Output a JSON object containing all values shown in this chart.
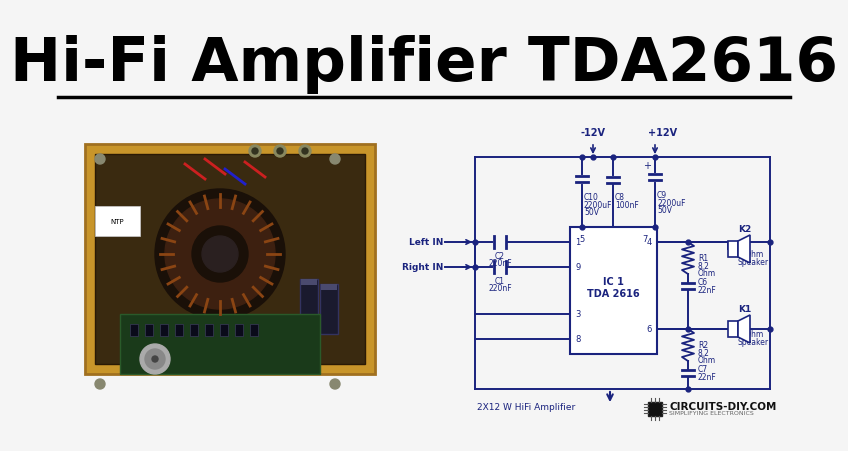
{
  "title": "Hi-Fi Amplifier TDA2616",
  "title_fontsize": 44,
  "title_fontweight": "bold",
  "title_color": "#000000",
  "bg_color": "#f5f5f5",
  "circuit_color": "#1a237e",
  "caption": "2X12 W HiFi Amplifier",
  "logo_text": "CIRCUITS-DIY.COM",
  "logo_subtext": "SIMPLIFYING ELECTRONICS",
  "ic_label1": "IC 1",
  "ic_label2": "TDA 2616",
  "left_in": "Left IN",
  "right_in": "Right IN",
  "neg12v": "-12V",
  "pos12v": "+12V",
  "photo_box_color": "#c8a84b",
  "photo_bg": "#d4a843"
}
